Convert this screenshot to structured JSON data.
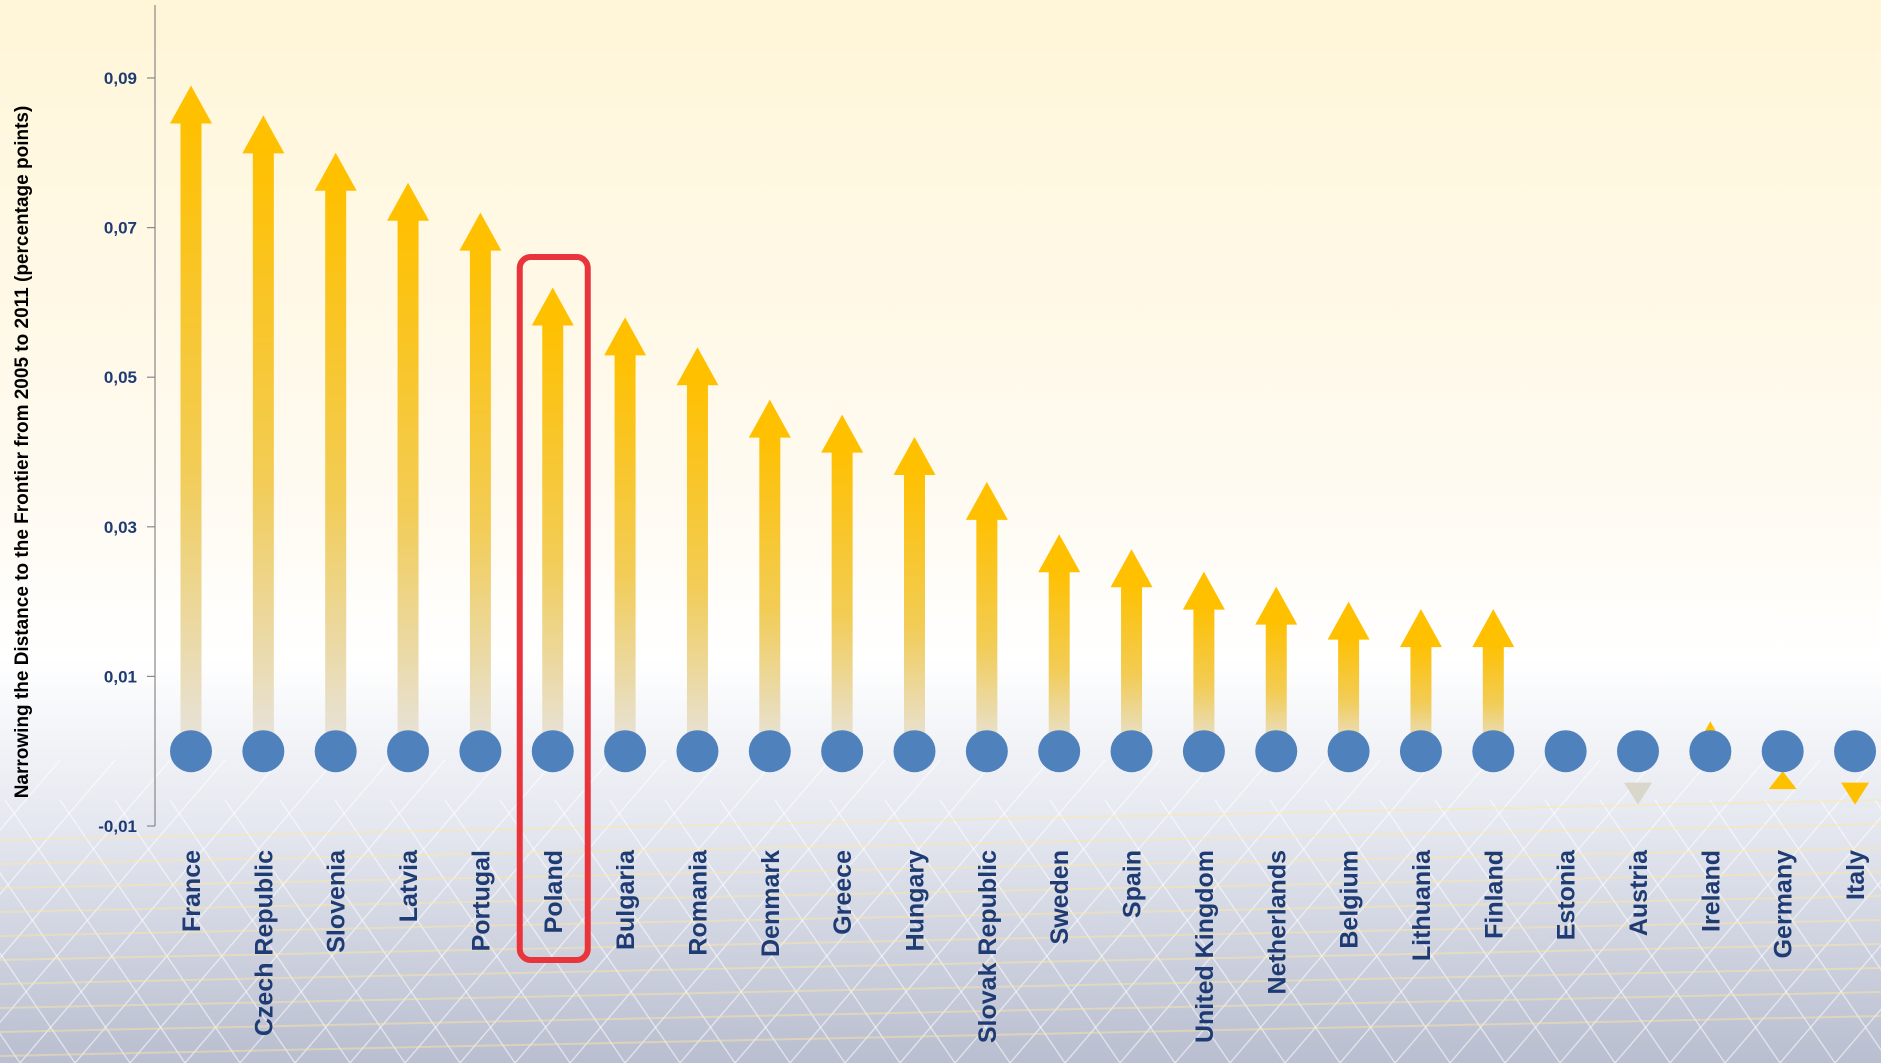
{
  "chart_data": {
    "type": "arrow-dot",
    "ylabel": "Narrowing the Distance to the Frontier from 2005 to 2011 (percentage points)",
    "ylim": [
      -0.01,
      0.1
    ],
    "yticks": [
      "0,09",
      "0,07",
      "0,05",
      "0,03",
      "0,01",
      "-0,01"
    ],
    "ytick_values": [
      0.09,
      0.07,
      0.05,
      0.03,
      0.01,
      -0.01
    ],
    "baseline": 0,
    "categories": [
      "France",
      "Czech Republic",
      "Slovenia",
      "Latvia",
      "Portugal",
      "Poland",
      "Bulgaria",
      "Romania",
      "Denmark",
      "Greece",
      "Hungary",
      "Slovak Republic",
      "Sweden",
      "Spain",
      "United Kingdom",
      "Netherlands",
      "Belgium",
      "Lithuania",
      "Finland",
      "Estonia",
      "Austria",
      "Ireland",
      "Germany",
      "Italy"
    ],
    "values": [
      0.089,
      0.085,
      0.08,
      0.076,
      0.072,
      0.062,
      0.058,
      0.054,
      0.047,
      0.045,
      0.042,
      0.036,
      0.029,
      0.027,
      0.024,
      0.022,
      0.02,
      0.019,
      0.019,
      -0.001,
      -0.005,
      0.004,
      -0.004,
      -0.005
    ],
    "highlight": "Poland",
    "colors": {
      "arrow": "#ffc000",
      "dot": "#4f81bd",
      "highlight": "#e8343a",
      "text": "#1f3b73"
    }
  }
}
